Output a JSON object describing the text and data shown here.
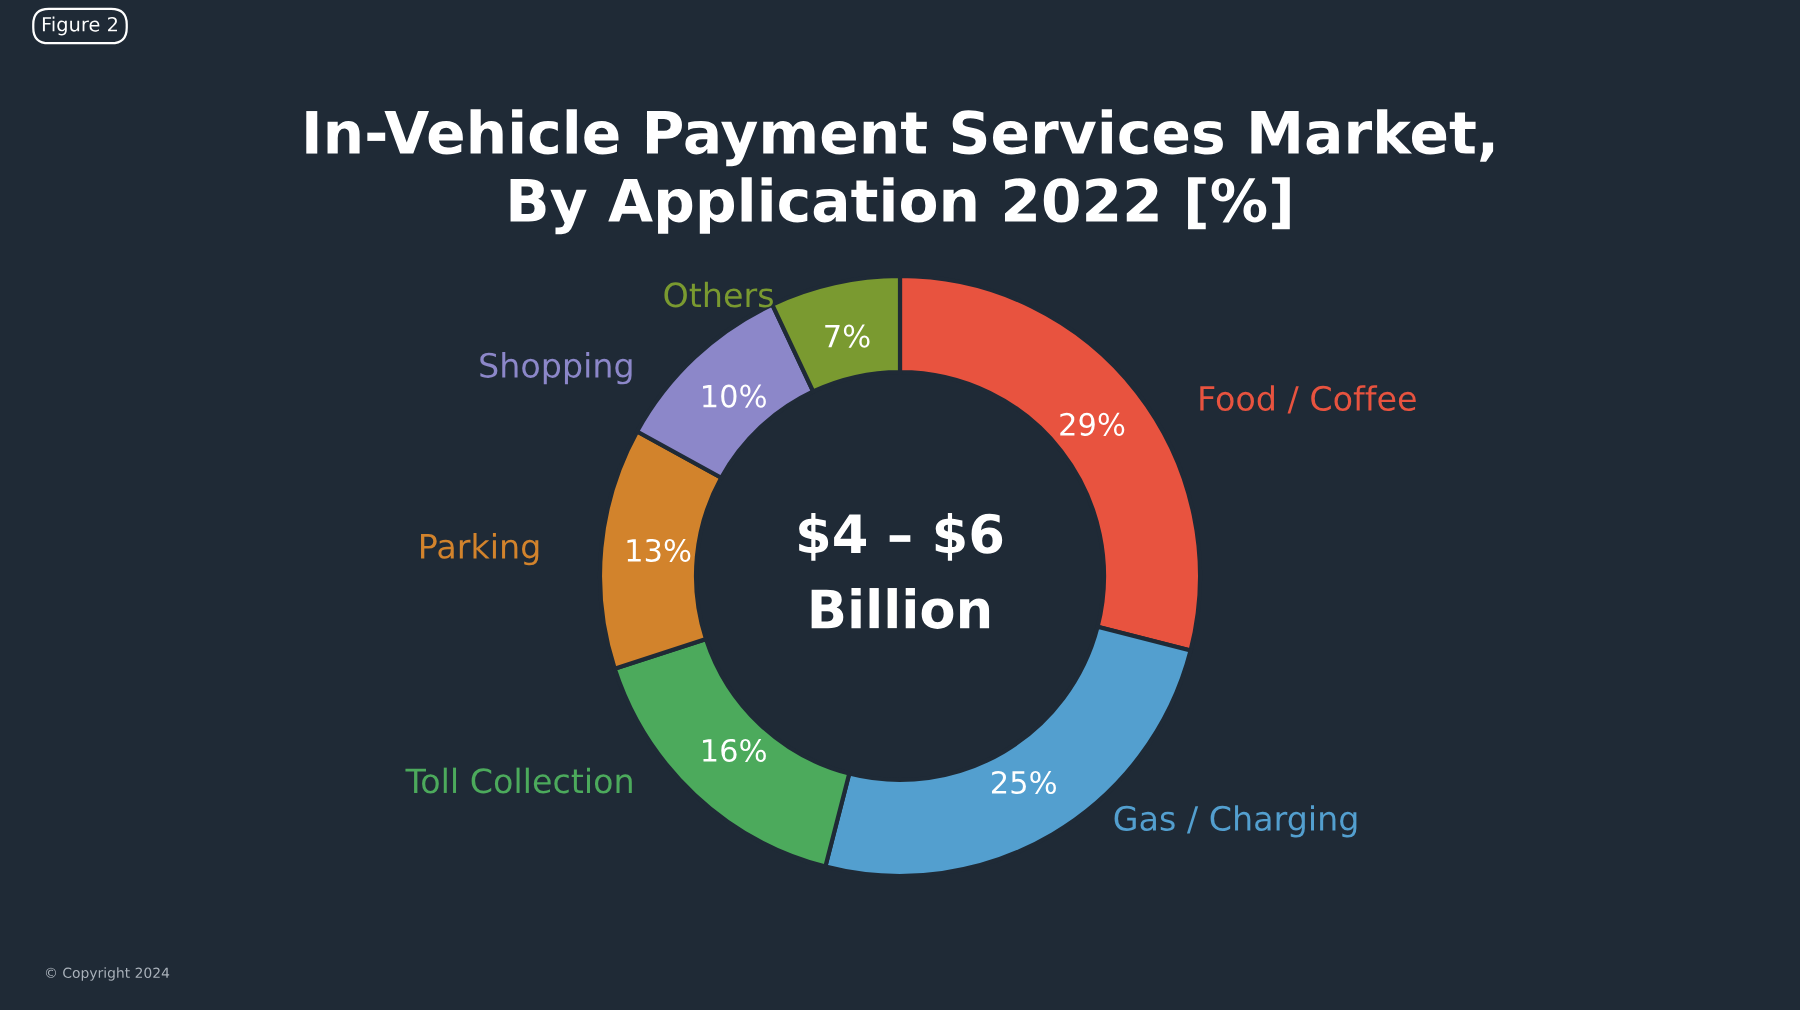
{
  "chart_data": {
    "type": "donut",
    "title": "In-Vehicle Payment Services Market,\nBy Application 2022 [%]",
    "categories": [
      "Food / Coffee",
      "Gas / Charging",
      "Toll Collection",
      "Parking",
      "Shopping",
      "Others"
    ],
    "values": [
      29,
      25,
      16,
      13,
      10,
      7
    ],
    "colors": [
      "#e8533f",
      "#539fcf",
      "#4caa5c",
      "#d2832c",
      "#8c87c9",
      "#7a9a30"
    ],
    "value_labels": [
      "29%",
      "25%",
      "16%",
      "13%",
      "10%",
      "7%"
    ],
    "annotations": [
      "$4 – $6\nBillion",
      "Figure 2",
      "© Copyright 2024"
    ]
  }
}
